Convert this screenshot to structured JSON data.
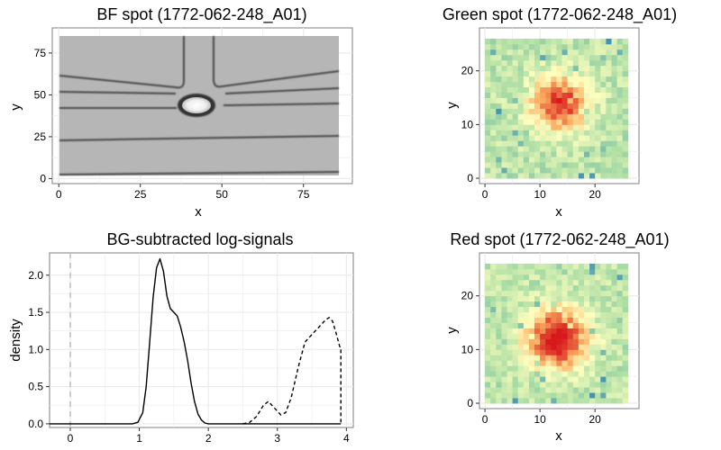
{
  "chart_data": [
    {
      "type": "image",
      "title": "BF spot (1772-062-248_A01)",
      "xlabel": "x",
      "ylabel": "y",
      "xlim": [
        -2,
        90
      ],
      "ylim": [
        -3,
        90
      ],
      "xticks": [
        0,
        25,
        50,
        75
      ],
      "yticks": [
        0,
        25,
        50,
        75
      ],
      "image_extent": {
        "x": [
          0.5,
          87
        ],
        "y": [
          0.5,
          87
        ]
      },
      "grid": true
    },
    {
      "type": "heatmap",
      "title": "Green spot (1772-062-248_A01)",
      "xlabel": "x",
      "ylabel": "y",
      "xlim": [
        -1,
        28
      ],
      "ylim": [
        -1,
        28
      ],
      "xticks": [
        0,
        10,
        20
      ],
      "yticks": [
        0,
        10,
        20
      ],
      "grid_size": 26,
      "spot_center": [
        13.5,
        14
      ],
      "grid": true
    },
    {
      "type": "line",
      "title": "BG-subtracted log-signals",
      "xlabel": "",
      "ylabel": "density",
      "xlim": [
        -0.3,
        4.1
      ],
      "ylim": [
        -0.05,
        2.3
      ],
      "xticks": [
        0,
        1,
        2,
        3,
        4
      ],
      "yticks": [
        0.0,
        0.5,
        1.0,
        1.5,
        2.0
      ],
      "vline_x": 0,
      "series": [
        {
          "style": "solid",
          "x": [
            -0.3,
            0.9,
            0.98,
            1.05,
            1.1,
            1.15,
            1.2,
            1.25,
            1.3,
            1.35,
            1.4,
            1.45,
            1.5,
            1.55,
            1.6,
            1.65,
            1.7,
            1.75,
            1.8,
            1.85,
            1.9,
            1.95,
            2.0,
            2.5,
            3.0,
            3.5,
            3.92
          ],
          "y": [
            0,
            0,
            0.02,
            0.15,
            0.5,
            1.1,
            1.7,
            2.1,
            2.22,
            2.05,
            1.72,
            1.55,
            1.5,
            1.45,
            1.3,
            1.1,
            0.85,
            0.55,
            0.3,
            0.13,
            0.05,
            0.01,
            0,
            0,
            0,
            0,
            0
          ]
        },
        {
          "style": "dashed",
          "x": [
            2.5,
            2.6,
            2.7,
            2.8,
            2.87,
            2.95,
            3.05,
            3.12,
            3.2,
            3.3,
            3.4,
            3.5,
            3.6,
            3.7,
            3.75,
            3.8,
            3.85,
            3.9,
            3.92
          ],
          "y": [
            0,
            0.02,
            0.1,
            0.25,
            0.3,
            0.22,
            0.12,
            0.15,
            0.35,
            0.75,
            1.1,
            1.2,
            1.3,
            1.4,
            1.43,
            1.38,
            1.22,
            1.05,
            1.0
          ]
        }
      ],
      "grid": true
    },
    {
      "type": "heatmap",
      "title": "Red spot (1772-062-248_A01)",
      "xlabel": "x",
      "ylabel": "y",
      "xlim": [
        -1,
        28
      ],
      "ylim": [
        -1,
        28
      ],
      "xticks": [
        0,
        10,
        20
      ],
      "yticks": [
        0,
        10,
        20
      ],
      "grid_size": 26,
      "spot_center": [
        13,
        12
      ],
      "grid": true
    }
  ],
  "colors": {
    "panel_border": "#7f7f7f",
    "grid": "#ebebeb",
    "bf_background": "#b6b6b6",
    "bf_channel": "#464646",
    "heat_low": "#2b83ba",
    "heat_mid_low": "#abdda4",
    "heat_mid": "#ffffbf",
    "heat_mid_high": "#fdae61",
    "heat_high": "#d7191c",
    "line": "#000000",
    "vline": "#bdbdbd"
  }
}
